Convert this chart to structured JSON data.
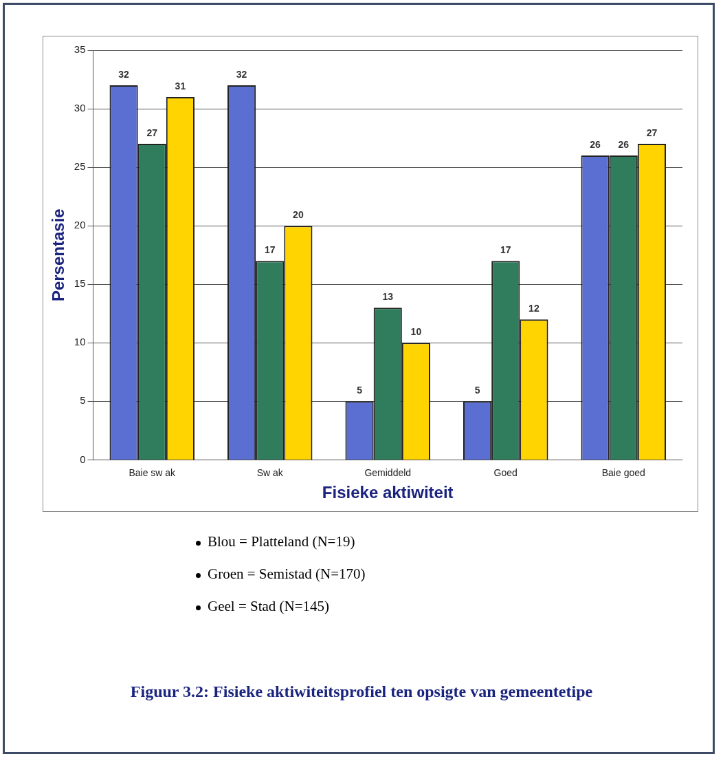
{
  "chart_data": {
    "type": "bar",
    "title": "Figuur 3.2: Fisieke aktiwiteitsprofiel ten opsigte van gemeentetipe",
    "xlabel": "Fisieke aktiwiteit",
    "ylabel": "Persentasie",
    "categories": [
      "Baie sw ak",
      "Sw ak",
      "Gemiddeld",
      "Goed",
      "Baie goed"
    ],
    "series": [
      {
        "color": "#5b6fd3",
        "values": [
          32,
          32,
          5,
          5,
          26
        ]
      },
      {
        "color": "#2f7d5c",
        "values": [
          27,
          17,
          13,
          17,
          26
        ]
      },
      {
        "color": "#ffd400",
        "values": [
          31,
          20,
          10,
          12,
          27
        ]
      }
    ],
    "ylim": [
      0,
      35
    ],
    "yticks": [
      0,
      5,
      10,
      15,
      20,
      25,
      30,
      35
    ],
    "grid": "y",
    "data_labels": true,
    "legend": false,
    "annotations": [
      "Blou = Platteland (N=19)",
      "Groen = Semistad (N=170)",
      "Geel = Stad (N=145)"
    ]
  }
}
